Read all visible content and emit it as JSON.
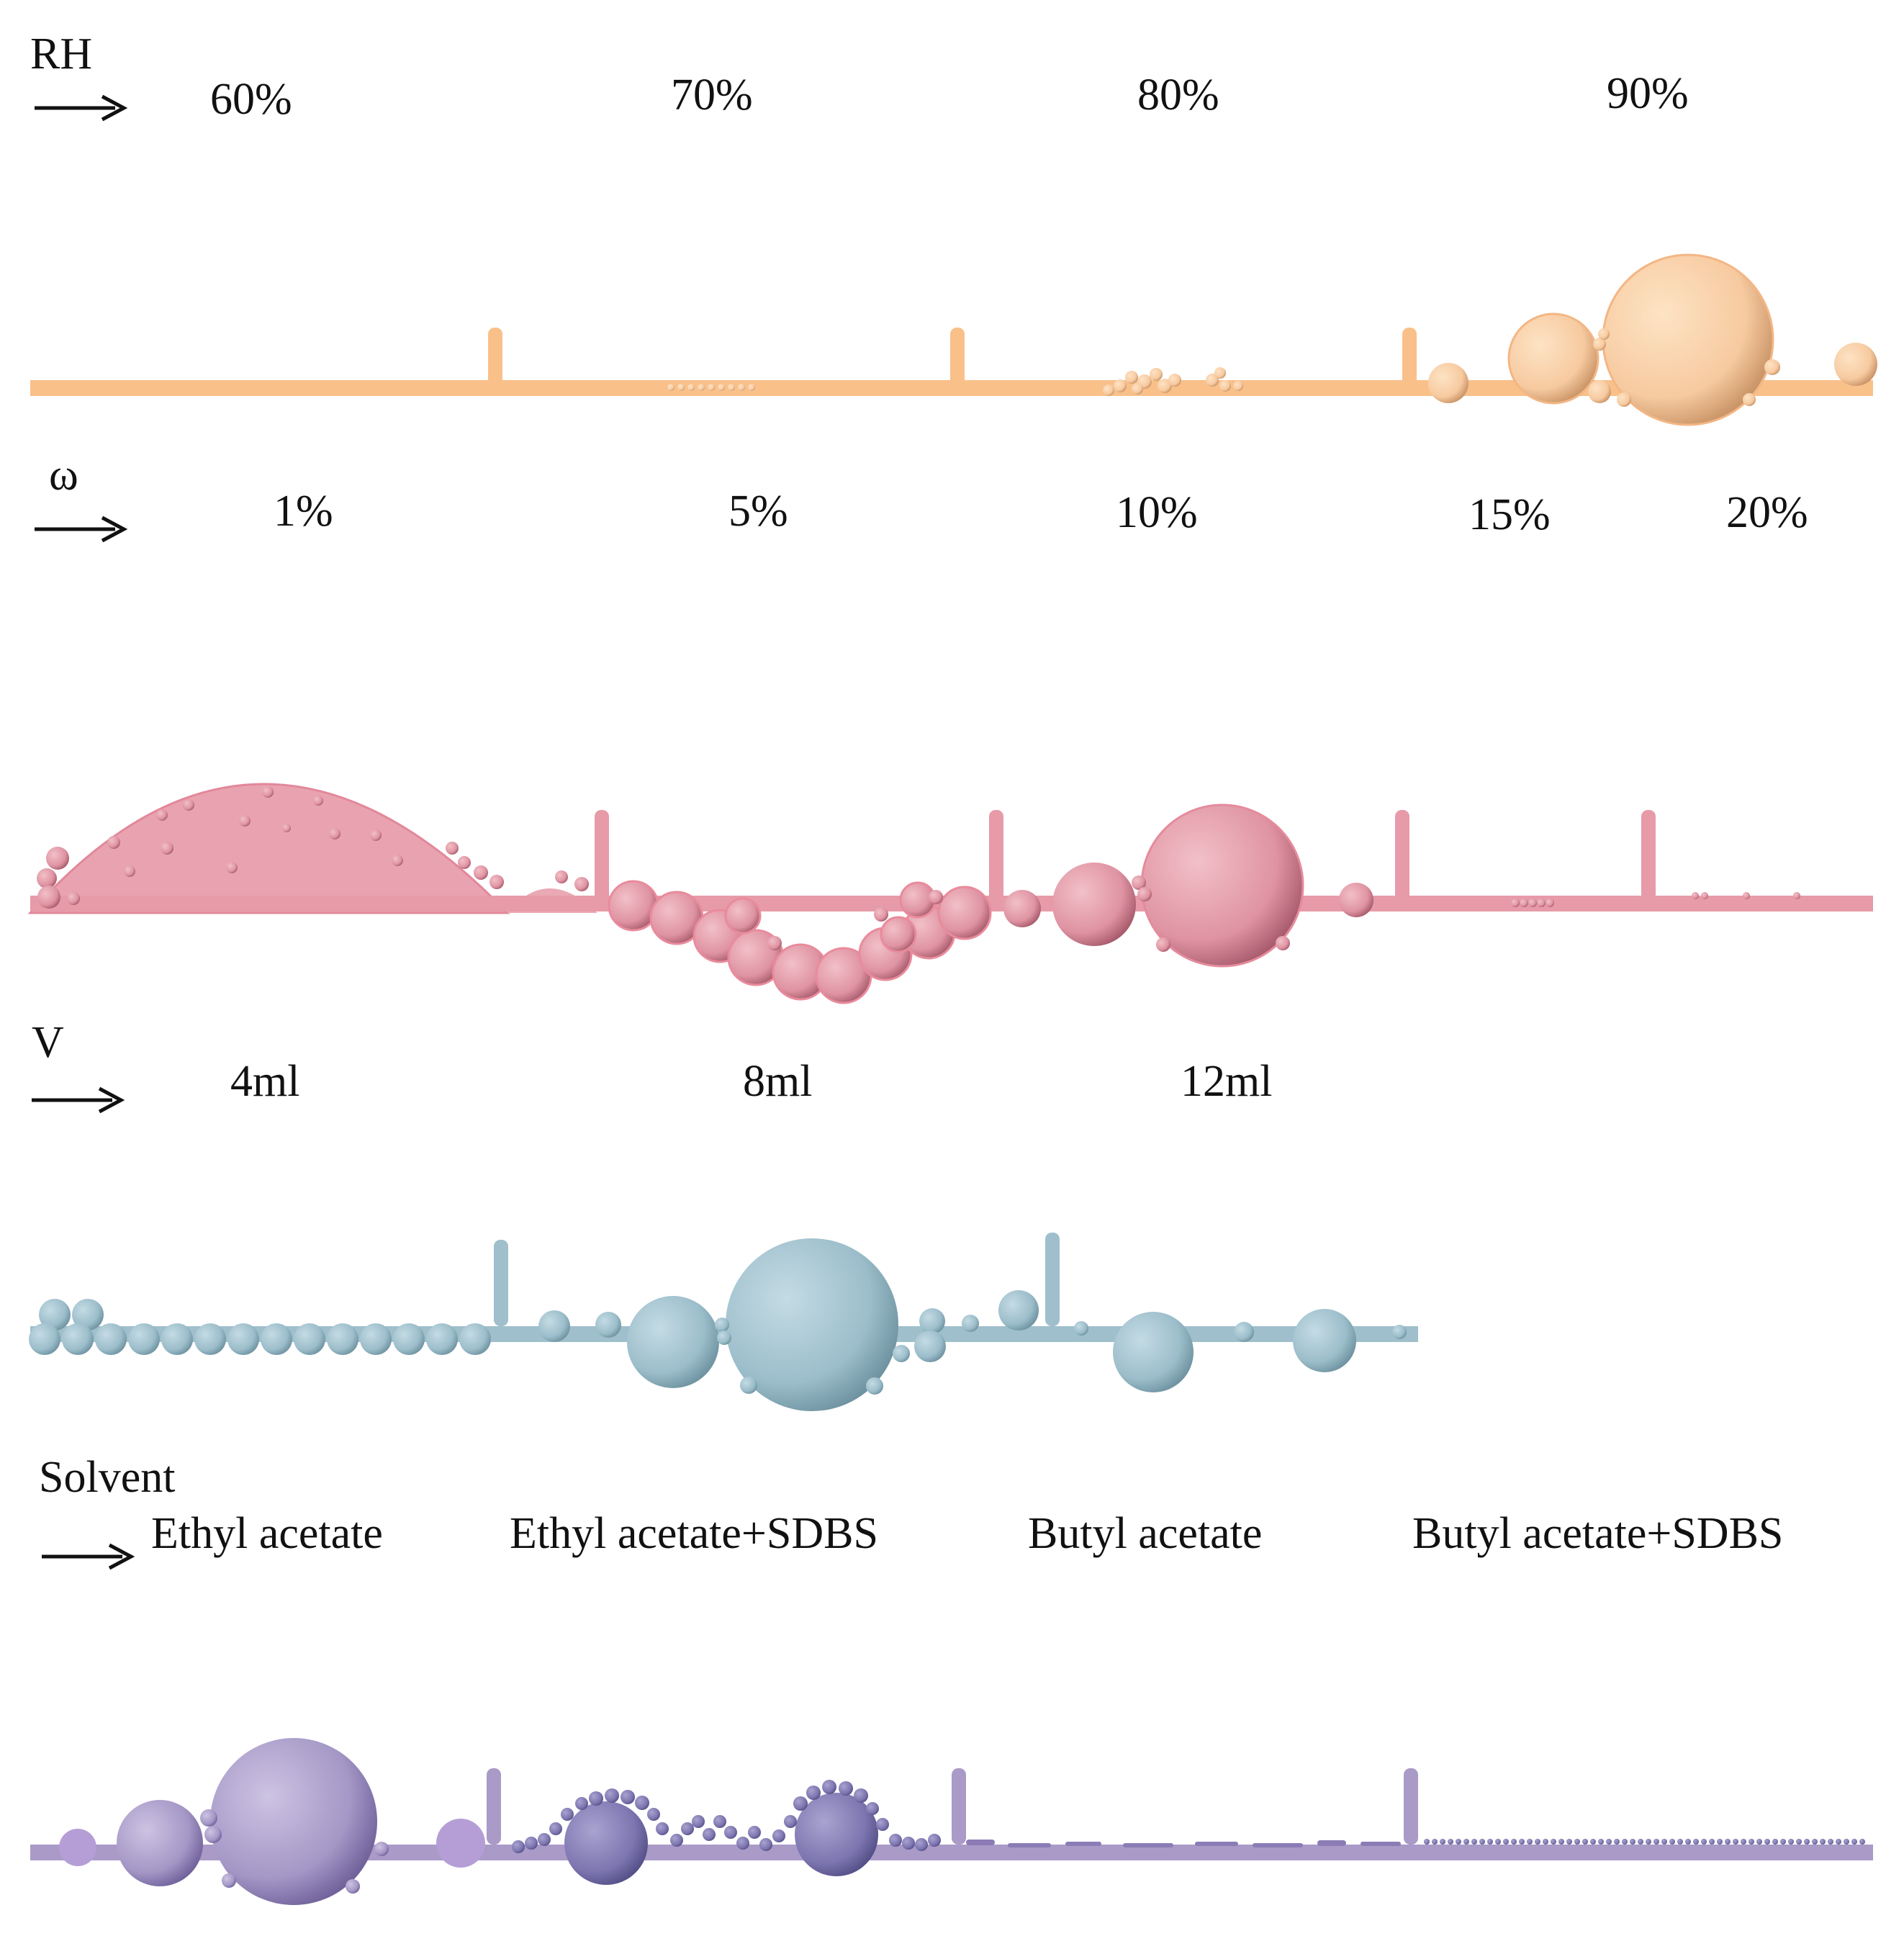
{
  "rows": [
    {
      "id": "rh",
      "variable": "RH",
      "conditions": [
        "60%",
        "70%",
        "80%",
        "90%"
      ],
      "color": "#f9c08a",
      "shade": "#d9a46f"
    },
    {
      "id": "omega",
      "variable": "ω",
      "conditions": [
        "1%",
        "5%",
        "10%",
        "15%",
        "20%"
      ],
      "color": "#e79aa8",
      "shade": "#c06d7e"
    },
    {
      "id": "volume",
      "variable": "V",
      "conditions": [
        "4ml",
        "8ml",
        "12ml"
      ],
      "color": "#9fbfcc",
      "shade": "#7b9daa"
    },
    {
      "id": "solvent",
      "variable": "Solvent",
      "conditions": [
        "Ethyl acetate",
        "Ethyl acetate+SDBS",
        "Butyl acetate",
        "Butyl acetate+SDBS"
      ],
      "color": "#a99ac7",
      "shade": "#7c6aa5"
    }
  ],
  "icons": {
    "arrow": "right-arrow-icon"
  }
}
